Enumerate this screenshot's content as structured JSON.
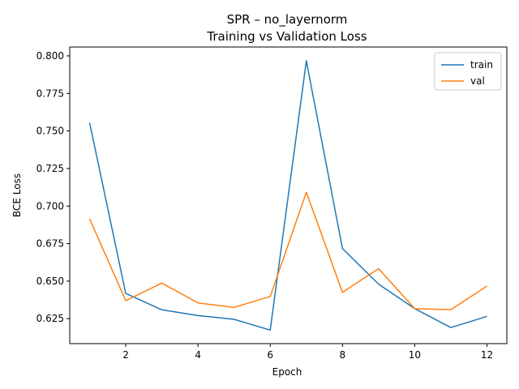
{
  "chart_data": {
    "type": "line",
    "title": "SPR – no_layernorm",
    "subtitle": "Training vs Validation Loss",
    "xlabel": "Epoch",
    "ylabel": "BCE Loss",
    "x": [
      1,
      2,
      3,
      4,
      5,
      6,
      7,
      8,
      9,
      10,
      11,
      12
    ],
    "xlim": [
      0.45,
      12.55
    ],
    "ylim": [
      0.6084,
      0.8059
    ],
    "xticks": [
      "2",
      "4",
      "6",
      "8",
      "10",
      "12"
    ],
    "yticks": [
      "0.625",
      "0.650",
      "0.675",
      "0.700",
      "0.725",
      "0.750",
      "0.775",
      "0.800"
    ],
    "grid": false,
    "legend_position": "top-right",
    "series": [
      {
        "name": "train",
        "color": "#1f77b4",
        "values": [
          0.7555,
          0.6418,
          0.6309,
          0.6271,
          0.6246,
          0.6174,
          0.7967,
          0.6717,
          0.648,
          0.6317,
          0.6191,
          0.6265
        ]
      },
      {
        "name": "val",
        "color": "#ff7f0e",
        "values": [
          0.6915,
          0.637,
          0.6487,
          0.6355,
          0.6325,
          0.6398,
          0.7092,
          0.6425,
          0.6583,
          0.6317,
          0.631,
          0.6467
        ]
      }
    ]
  }
}
